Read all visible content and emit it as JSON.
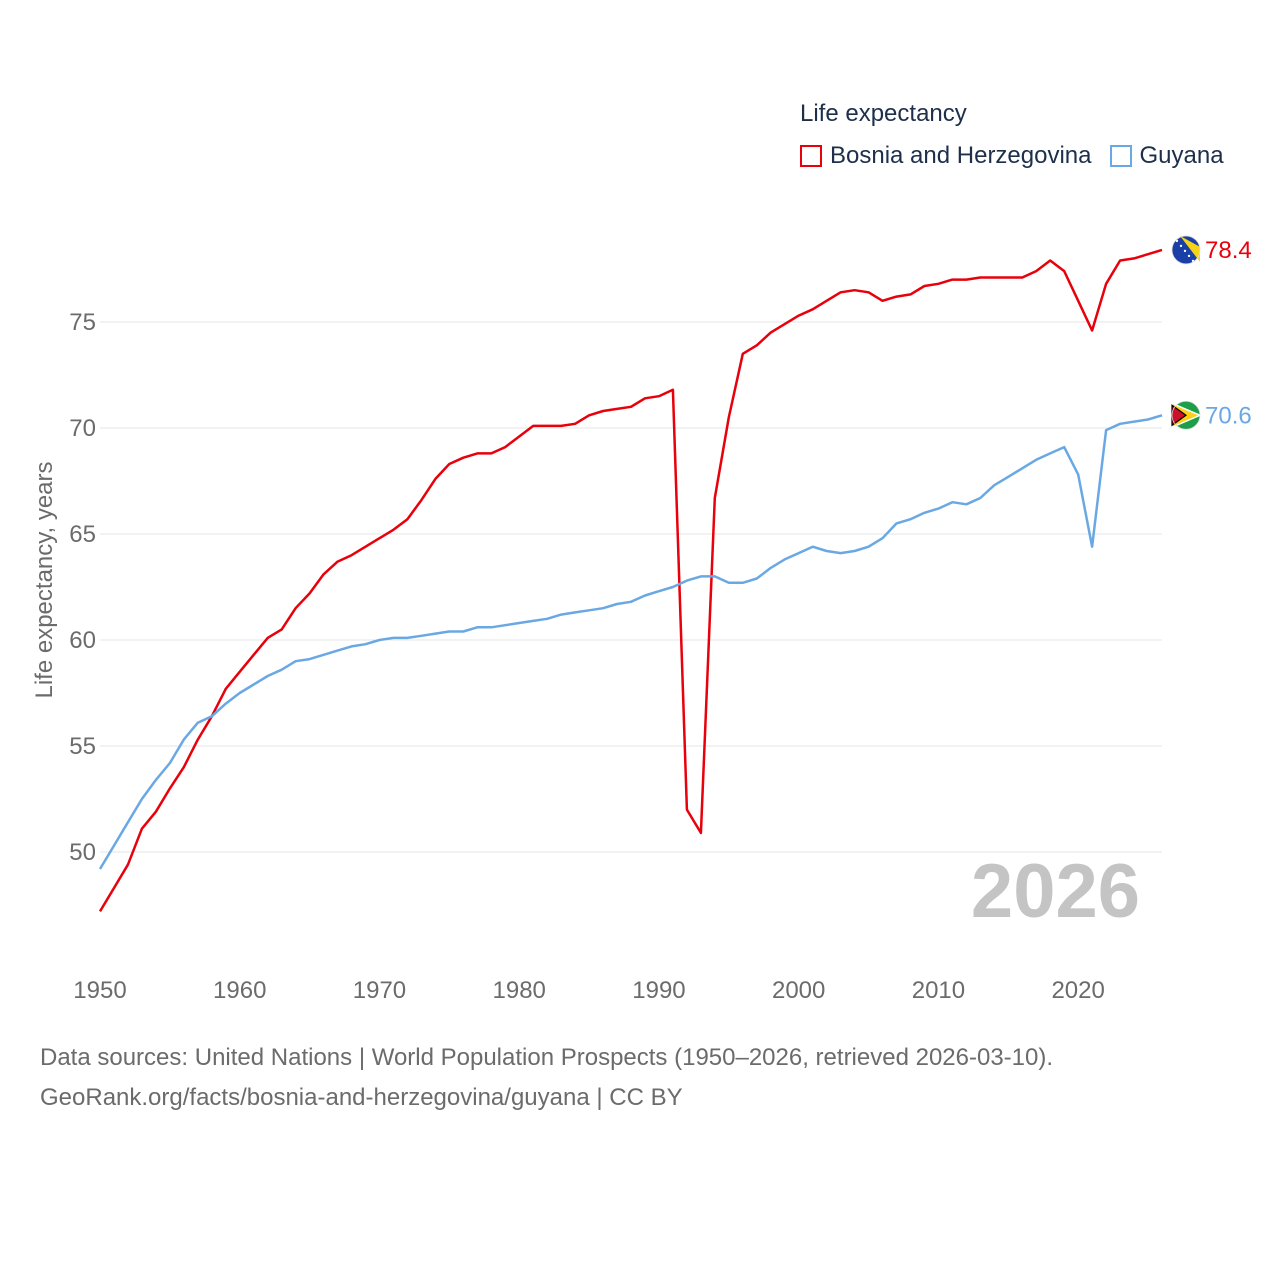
{
  "chart_data": {
    "type": "line",
    "title": "Life expectancy",
    "xlabel": "",
    "ylabel": "Life expectancy, years",
    "xlim": [
      1950,
      2026
    ],
    "ylim": [
      45,
      80
    ],
    "x_ticks": [
      1950,
      1960,
      1970,
      1980,
      1990,
      2000,
      2010,
      2020
    ],
    "y_ticks": [
      50,
      55,
      60,
      65,
      70,
      75
    ],
    "current_year": "2026",
    "x": [
      1950,
      1951,
      1952,
      1953,
      1954,
      1955,
      1956,
      1957,
      1958,
      1959,
      1960,
      1961,
      1962,
      1963,
      1964,
      1965,
      1966,
      1967,
      1968,
      1969,
      1970,
      1971,
      1972,
      1973,
      1974,
      1975,
      1976,
      1977,
      1978,
      1979,
      1980,
      1981,
      1982,
      1983,
      1984,
      1985,
      1986,
      1987,
      1988,
      1989,
      1990,
      1991,
      1992,
      1993,
      1994,
      1995,
      1996,
      1997,
      1998,
      1999,
      2000,
      2001,
      2002,
      2003,
      2004,
      2005,
      2006,
      2007,
      2008,
      2009,
      2010,
      2011,
      2012,
      2013,
      2014,
      2015,
      2016,
      2017,
      2018,
      2019,
      2020,
      2021,
      2022,
      2023,
      2024,
      2025,
      2026
    ],
    "series": [
      {
        "name": "Bosnia and Herzegovina",
        "color": "#e8000b",
        "end_label": "78.4",
        "values": [
          47.2,
          48.3,
          49.4,
          51.1,
          51.9,
          53.0,
          54.0,
          55.3,
          56.4,
          57.7,
          58.5,
          59.3,
          60.1,
          60.5,
          61.5,
          62.2,
          63.1,
          63.7,
          64.0,
          64.4,
          64.8,
          65.2,
          65.7,
          66.6,
          67.6,
          68.3,
          68.6,
          68.8,
          68.8,
          69.1,
          69.6,
          70.1,
          70.1,
          70.1,
          70.2,
          70.6,
          70.8,
          70.9,
          71.0,
          71.4,
          71.5,
          71.8,
          52.0,
          50.9,
          66.7,
          70.5,
          73.5,
          73.9,
          74.5,
          74.9,
          75.3,
          75.6,
          76.0,
          76.4,
          76.5,
          76.4,
          76.0,
          76.2,
          76.3,
          76.7,
          76.8,
          77.0,
          77.0,
          77.1,
          77.1,
          77.1,
          77.1,
          77.4,
          77.9,
          77.4,
          76.0,
          74.6,
          76.8,
          77.9,
          78.0,
          78.2,
          78.4
        ]
      },
      {
        "name": "Guyana",
        "color": "#6aa8e4",
        "end_label": "70.6",
        "values": [
          49.2,
          50.3,
          51.4,
          52.5,
          53.4,
          54.2,
          55.3,
          56.1,
          56.4,
          57.0,
          57.5,
          57.9,
          58.3,
          58.6,
          59.0,
          59.1,
          59.3,
          59.5,
          59.7,
          59.8,
          60.0,
          60.1,
          60.1,
          60.2,
          60.3,
          60.4,
          60.4,
          60.6,
          60.6,
          60.7,
          60.8,
          60.9,
          61.0,
          61.2,
          61.3,
          61.4,
          61.5,
          61.7,
          61.8,
          62.1,
          62.3,
          62.5,
          62.8,
          63.0,
          63.0,
          62.7,
          62.7,
          62.9,
          63.4,
          63.8,
          64.1,
          64.4,
          64.2,
          64.1,
          64.2,
          64.4,
          64.8,
          65.5,
          65.7,
          66.0,
          66.2,
          66.5,
          66.4,
          66.7,
          67.3,
          67.7,
          68.1,
          68.5,
          68.8,
          69.1,
          67.8,
          64.4,
          69.9,
          70.2,
          70.3,
          70.4,
          70.6
        ]
      }
    ]
  },
  "legend": {
    "title": "Life expectancy",
    "items": [
      "Bosnia and Herzegovina",
      "Guyana"
    ]
  },
  "footer": {
    "line1": "Data sources: United Nations | World Population Prospects (1950–2026, retrieved 2026-03-10).",
    "line2": "GeoRank.org/facts/bosnia-and-herzegovina/guyana | CC BY"
  }
}
